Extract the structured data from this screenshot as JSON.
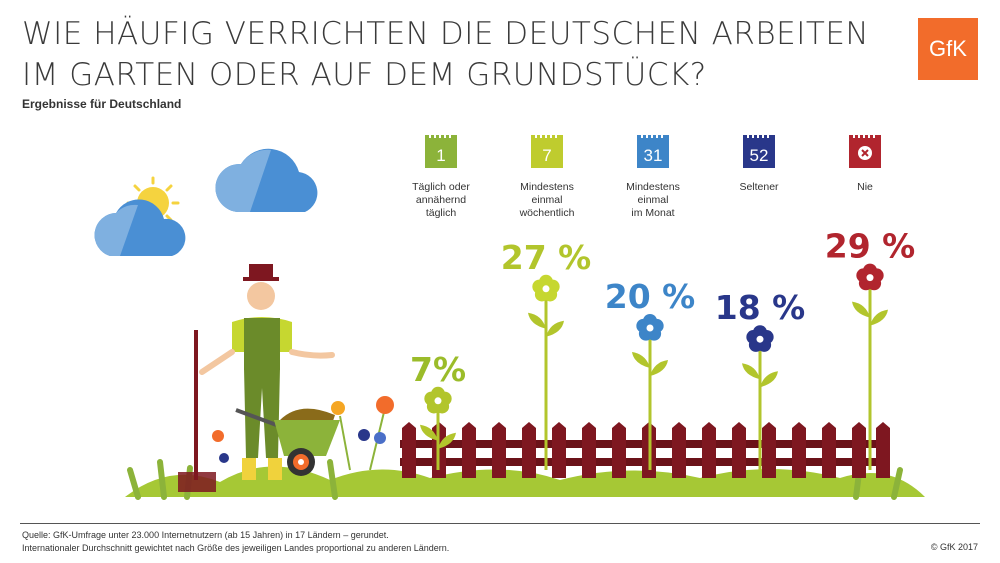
{
  "header": {
    "title_line1": "WIE HÄUFIG VERRICHTEN DIE DEUTSCHEN ARBEITEN",
    "title_line2": "IM GARTEN ODER AUF DEM GRUNDSTÜCK?",
    "subtitle": "Ergebnisse für Deutschland",
    "logo_text": "GfK"
  },
  "chart_data": {
    "type": "bar",
    "title": "WIE HÄUFIG VERRICHTEN DIE DEUTSCHEN ARBEITEN IM GARTEN ODER AUF DEM GRUNDSTÜCK?",
    "subtitle": "Ergebnisse für Deutschland",
    "categories": [
      "Täglich oder annähernd täglich",
      "Mindestens einmal wöchentlich",
      "Mindestens einmal im Monat",
      "Seltener",
      "Nie"
    ],
    "values": [
      7,
      27,
      20,
      18,
      29
    ],
    "value_labels": [
      "7%",
      "27 %",
      "20 %",
      "18 %",
      "29 %"
    ],
    "unit": "%",
    "colors": [
      "#9bbc2a",
      "#b2c52c",
      "#3d85c8",
      "#29378a",
      "#b1252e"
    ]
  },
  "legend": [
    {
      "icon_text": "1",
      "label": "Täglich oder\nannähernd\ntäglich",
      "color": "#8cb33a"
    },
    {
      "icon_text": "7",
      "label": "Mindestens\neinmal\nwöchentlich",
      "color": "#bfcc2e"
    },
    {
      "icon_text": "31",
      "label": "Mindestens\neinmal\nim Monat",
      "color": "#3d85c8"
    },
    {
      "icon_text": "52",
      "label": "Seltener",
      "color": "#29378a"
    },
    {
      "icon_text": "",
      "label": "Nie",
      "color": "#b1252e",
      "icon": "x-icon"
    }
  ],
  "footer": {
    "source_line1": "Quelle: GfK-Umfrage unter 23.000 Internetnutzern (ab 15 Jahren) in 17 Ländern – gerundet.",
    "source_line2": "Internationaler Durchschnitt gewichtet nach Größe des jeweiligen Landes proportional zu anderen Ländern.",
    "copyright": "© GfK 2017"
  }
}
